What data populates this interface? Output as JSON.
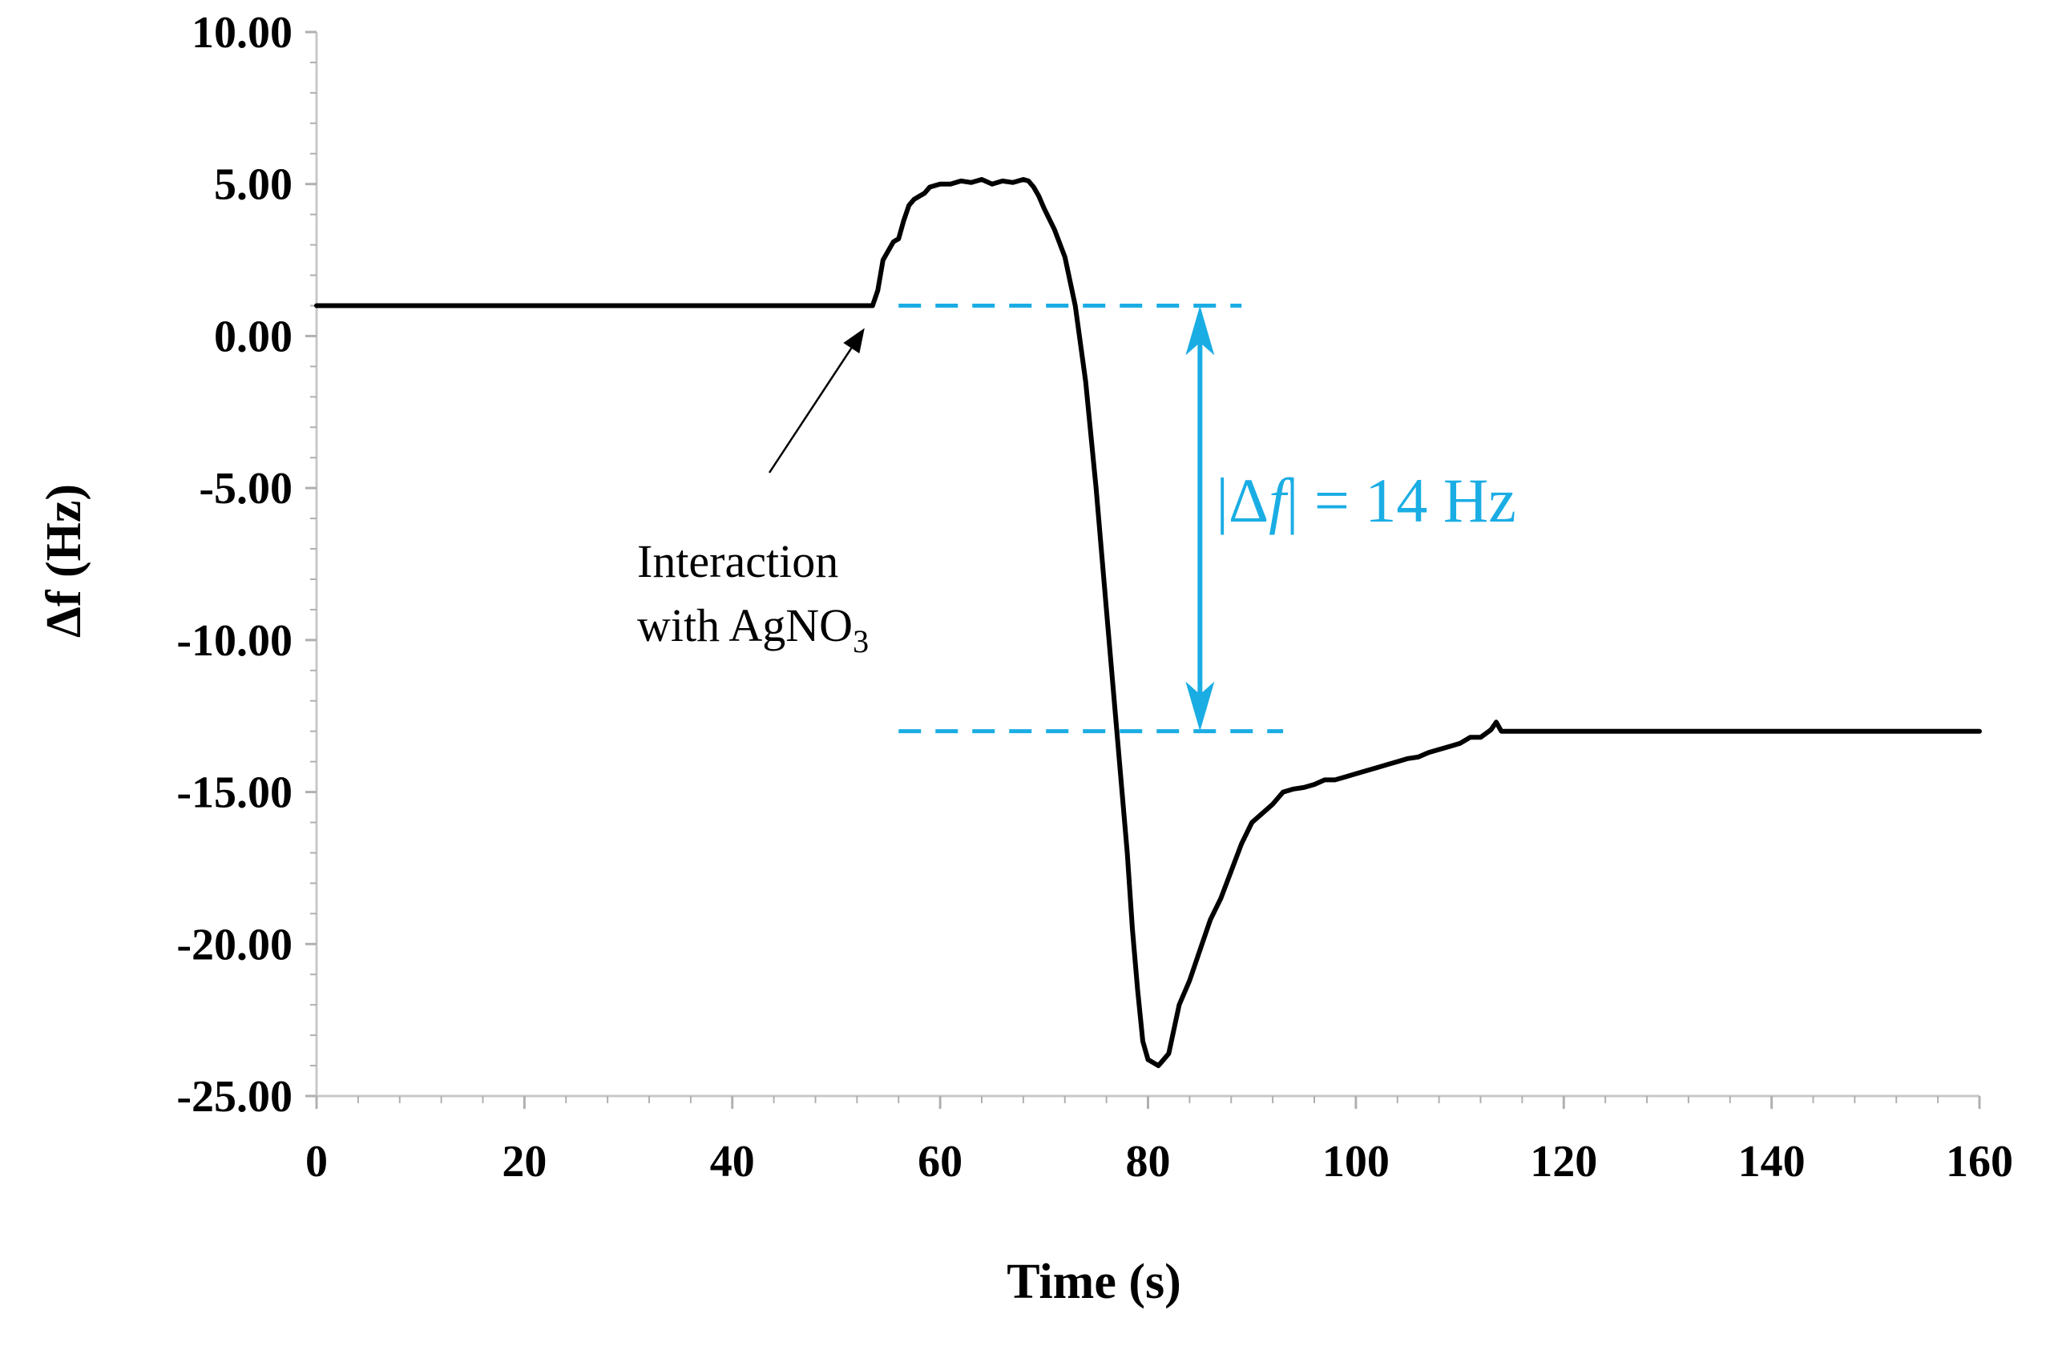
{
  "chart_data": {
    "type": "line",
    "xlabel": "Time (s)",
    "ylabel": "Δf (Hz)",
    "xlim": [
      0,
      160
    ],
    "ylim": [
      -25,
      10
    ],
    "x_ticks": [
      "0",
      "20",
      "40",
      "60",
      "80",
      "100",
      "120",
      "140",
      "160"
    ],
    "y_ticks": [
      "10.00",
      "5.00",
      "0.00",
      "-5.00",
      "-10.00",
      "-15.00",
      "-20.00",
      "-25.00"
    ],
    "series": [
      {
        "name": "Δf",
        "color": "#000000",
        "x": [
          0,
          53.5,
          54,
          54.5,
          55,
          55.5,
          56,
          56.5,
          57,
          57.5,
          58,
          58.5,
          59,
          60,
          61,
          62,
          63,
          64,
          65,
          66,
          67,
          68,
          68.5,
          69,
          69.5,
          70,
          71,
          72,
          73,
          74,
          75,
          76,
          77,
          77.5,
          78,
          78.5,
          79,
          79.5,
          80,
          80.5,
          81,
          81.5,
          82,
          82.5,
          83,
          83.5,
          84,
          85,
          86,
          87,
          88,
          89,
          90,
          91,
          92,
          93,
          94,
          95,
          96,
          97,
          98,
          99,
          100,
          101,
          102,
          103,
          104,
          105,
          106,
          107,
          108,
          109,
          110,
          111,
          112,
          113,
          113.5,
          114,
          114.5,
          160
        ],
        "y": [
          1.0,
          1.0,
          1.5,
          2.5,
          2.8,
          3.1,
          3.2,
          3.8,
          4.3,
          4.5,
          4.6,
          4.7,
          4.9,
          5.0,
          5.0,
          5.1,
          5.05,
          5.15,
          5.0,
          5.1,
          5.05,
          5.15,
          5.1,
          4.9,
          4.6,
          4.2,
          3.5,
          2.6,
          1.0,
          -1.5,
          -5.0,
          -9.0,
          -13.0,
          -15.0,
          -17.0,
          -19.5,
          -21.5,
          -23.2,
          -23.8,
          -23.9,
          -24.0,
          -23.8,
          -23.6,
          -22.8,
          -22.0,
          -21.6,
          -21.2,
          -20.2,
          -19.2,
          -18.5,
          -17.6,
          -16.7,
          -16.0,
          -15.7,
          -15.4,
          -15.0,
          -14.9,
          -14.85,
          -14.75,
          -14.6,
          -14.6,
          -14.5,
          -14.4,
          -14.3,
          -14.2,
          -14.1,
          -14.0,
          -13.9,
          -13.85,
          -13.7,
          -13.6,
          -13.5,
          -13.4,
          -13.2,
          -13.2,
          -12.95,
          -12.7,
          -13.0,
          -13.0,
          -13.0
        ]
      }
    ],
    "annotations": {
      "interaction_line1": "Interaction",
      "interaction_line2": "with AgNO",
      "interaction_sub": "3",
      "interaction_point": [
        53.5,
        1.0
      ],
      "interaction_text_anchor": [
        44,
        -4.5
      ],
      "upper_level": 1.0,
      "lower_level": -13.0,
      "measure_x": 85,
      "upper_dash_range": [
        56,
        89
      ],
      "lower_dash_range": [
        56,
        93
      ],
      "measure_label_prefix": "|Δ",
      "measure_label_italic": "f",
      "measure_label_suffix": "| = 14 Hz",
      "measure_color": "#1AADE4"
    }
  }
}
